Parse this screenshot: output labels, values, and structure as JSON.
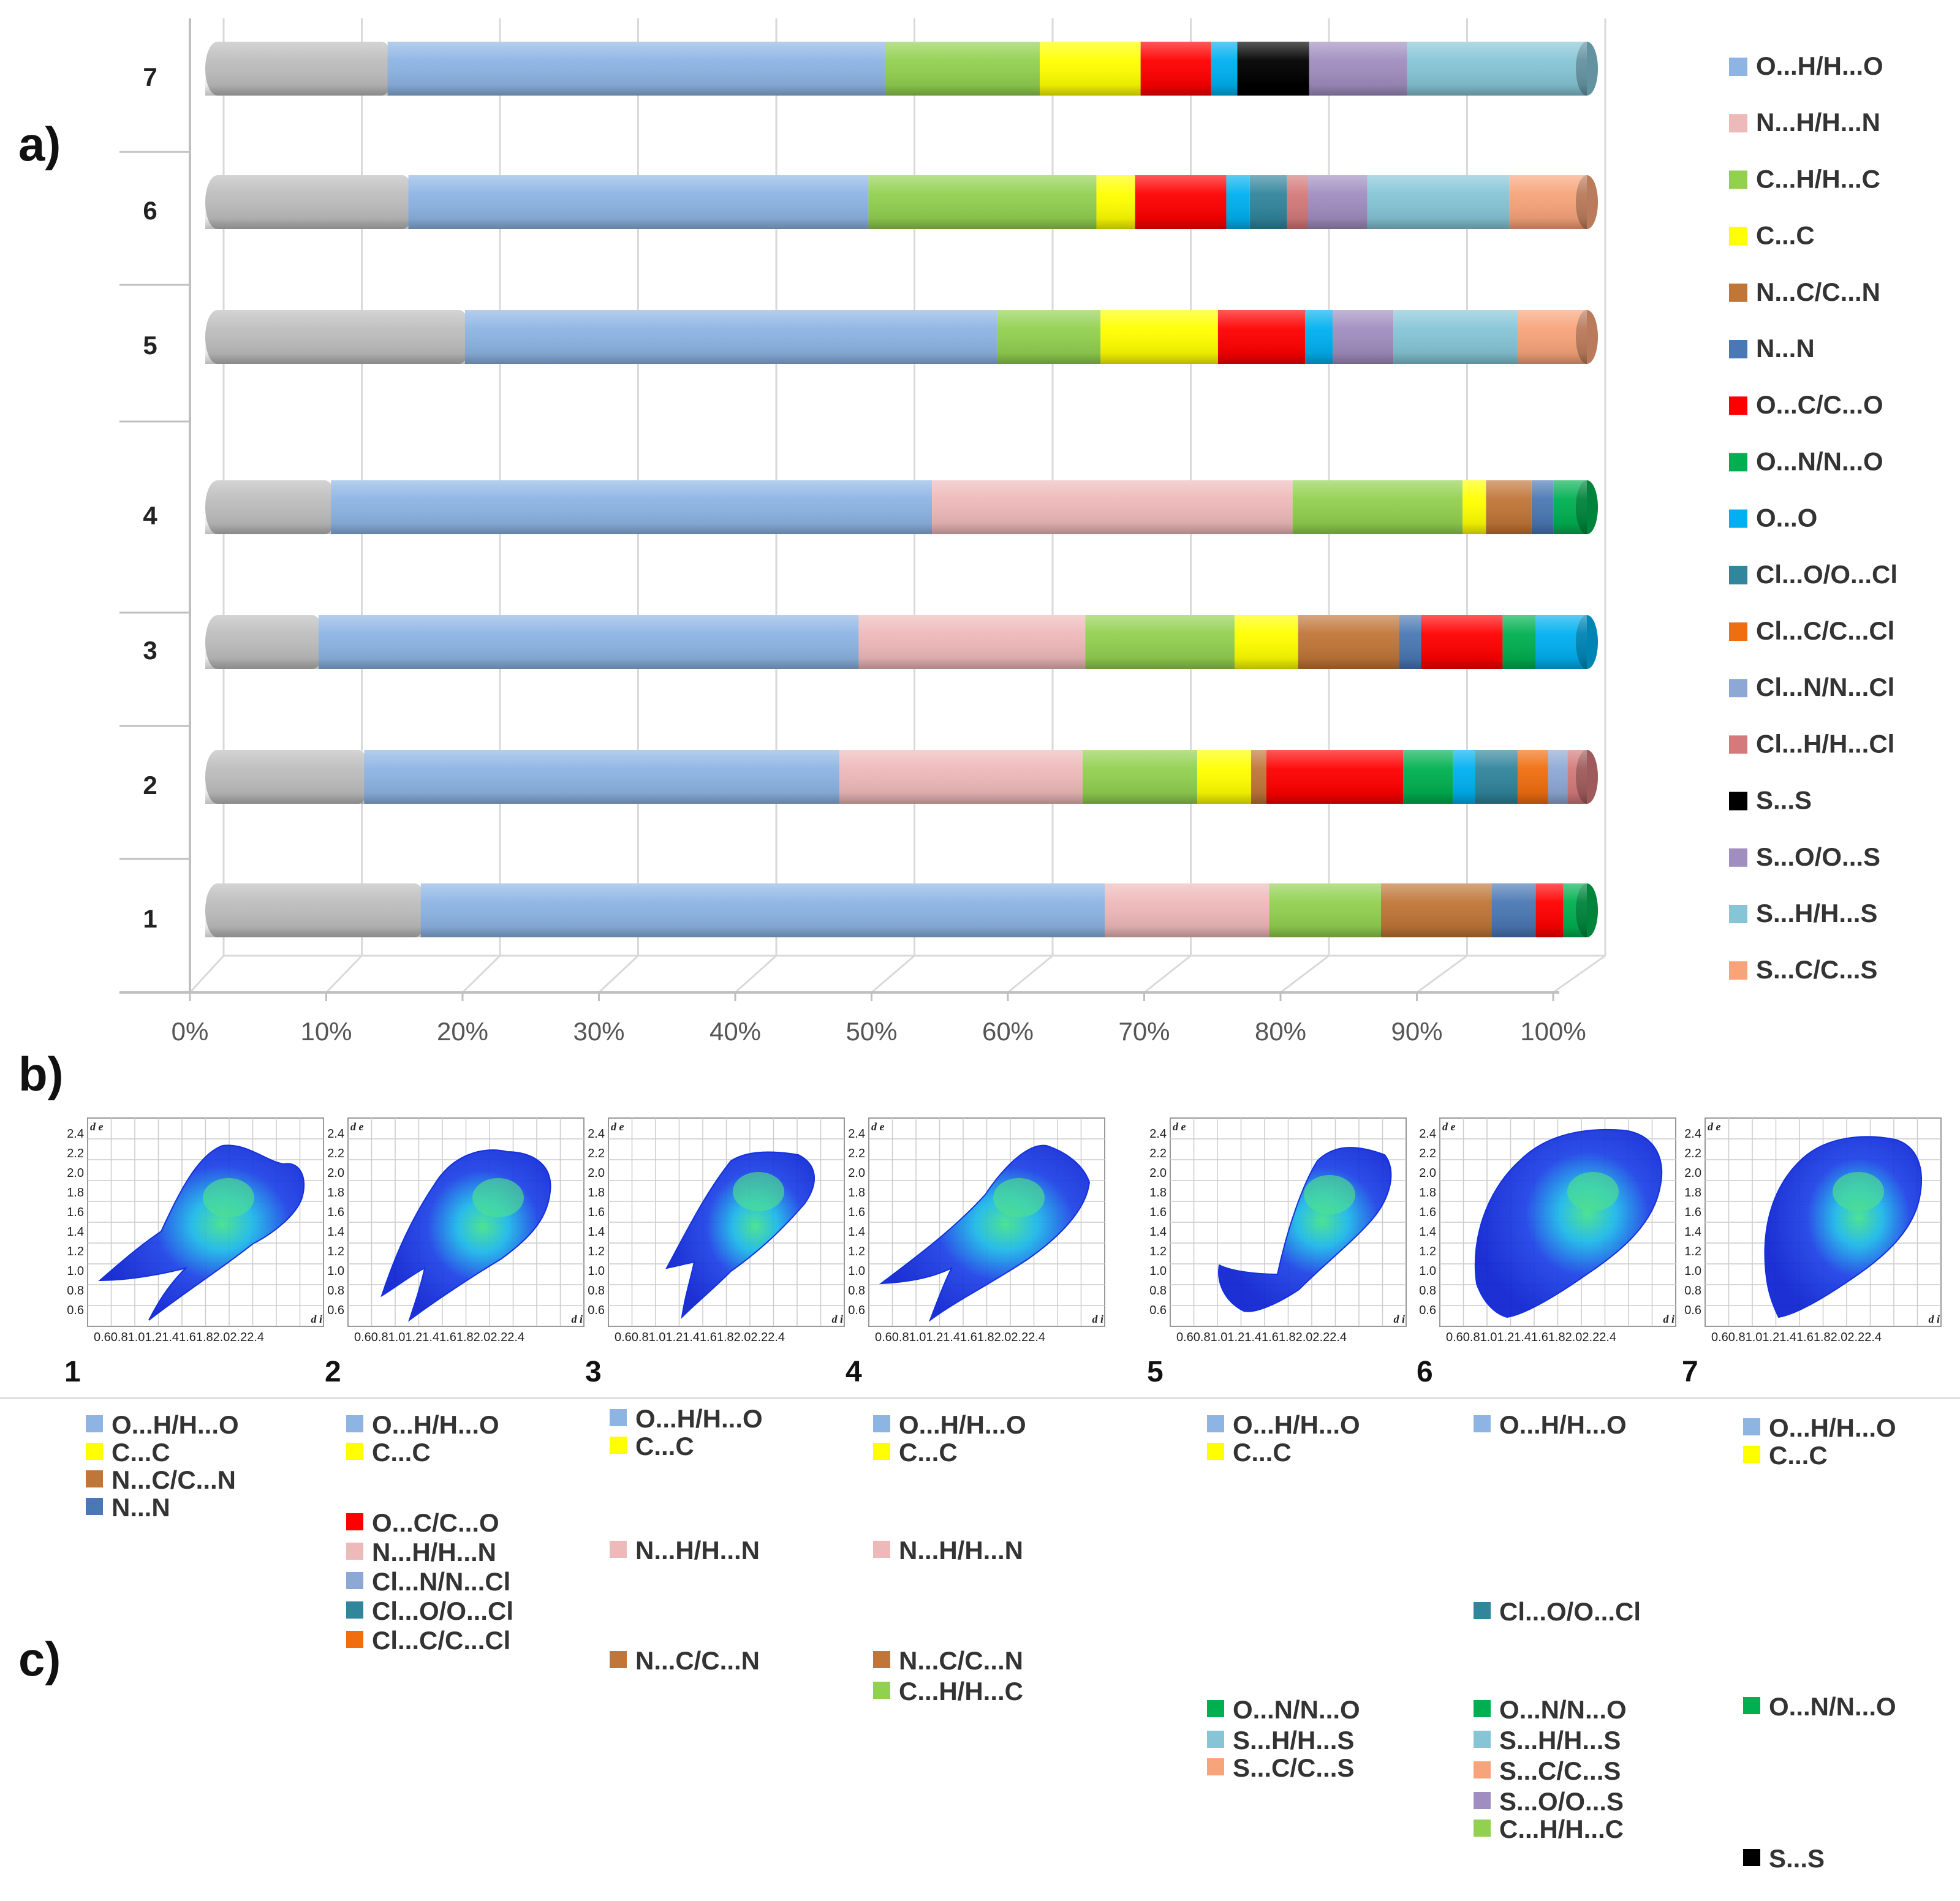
{
  "panels": {
    "a": "a)",
    "b": "b)",
    "c": "c)"
  },
  "colors": {
    "Other": "#bdbdbd",
    "O...H/H...O": "#8db4e3",
    "N...H/H...N": "#eeb9b9",
    "C...H/H...C": "#92d050",
    "C...C": "#ffff00",
    "N...C/C...N": "#c07638",
    "N...N": "#4a78b4",
    "O...C/C...O": "#ff0000",
    "O...N/N...O": "#00b050",
    "O...O": "#00b0f0",
    "Cl...O/O...Cl": "#31859c",
    "Cl...C/C...Cl": "#f06e10",
    "Cl...N/N...Cl": "#8ea8d6",
    "Cl...H/H...Cl": "#d47a7a",
    "S...S": "#000000",
    "S...O/O...S": "#a08ec0",
    "S...H/H...S": "#86c5d6",
    "S...C/C...S": "#f7a47a"
  },
  "chart_data": {
    "type": "bar",
    "orientation": "horizontal",
    "stacked": "percent",
    "categories": [
      "1",
      "2",
      "3",
      "4",
      "5",
      "6",
      "7"
    ],
    "x_ticks": [
      "0%",
      "10%",
      "20%",
      "30%",
      "40%",
      "50%",
      "60%",
      "70%",
      "80%",
      "90%",
      "100%"
    ],
    "xlim": [
      0,
      100
    ],
    "legend_position": "right",
    "legend": [
      "O...H/H...O",
      "N...H/H...N",
      "C...H/H...C",
      "C...C",
      "N...C/C...N",
      "N...N",
      "O...C/C...O",
      "O...N/N...O",
      "O...O",
      "Cl...O/O...Cl",
      "Cl...C/C...Cl",
      "Cl...N/N...Cl",
      "Cl...H/H...Cl",
      "S...S",
      "S...O/O...S",
      "S...H/H...S",
      "S...C/C...S"
    ],
    "stacks": [
      {
        "category": "1",
        "segments": [
          [
            "Other",
            15.6
          ],
          [
            "O...H/H...O",
            49.5
          ],
          [
            "N...H/H...N",
            11.9
          ],
          [
            "C...H/H...C",
            8.1
          ],
          [
            "N...C/C...N",
            8.0
          ],
          [
            "N...N",
            3.2
          ],
          [
            "O...C/C...O",
            2.0
          ],
          [
            "O...N/N...O",
            1.7
          ]
        ]
      },
      {
        "category": "2",
        "segments": [
          [
            "Other",
            11.5
          ],
          [
            "O...H/H...O",
            34.4
          ],
          [
            "N...H/H...N",
            17.6
          ],
          [
            "C...H/H...C",
            8.3
          ],
          [
            "C...C",
            3.9
          ],
          [
            "N...C/C...N",
            1.1
          ],
          [
            "O...C/C...O",
            9.9
          ],
          [
            "O...N/N...O",
            3.6
          ],
          [
            "O...O",
            1.6
          ],
          [
            "Cl...O/O...Cl",
            3.1
          ],
          [
            "Cl...C/C...Cl",
            2.2
          ],
          [
            "Cl...N/N...Cl",
            1.4
          ],
          [
            "Cl...H/H...Cl",
            1.4
          ]
        ]
      },
      {
        "category": "3",
        "segments": [
          [
            "Other",
            8.2
          ],
          [
            "O...H/H...O",
            39.1
          ],
          [
            "N...H/H...N",
            16.4
          ],
          [
            "C...H/H...C",
            10.8
          ],
          [
            "C...C",
            4.6
          ],
          [
            "N...C/C...N",
            7.3
          ],
          [
            "N...N",
            1.6
          ],
          [
            "O...C/C...O",
            5.9
          ],
          [
            "O...N/N...O",
            2.4
          ],
          [
            "O...O",
            3.7
          ]
        ]
      },
      {
        "category": "4",
        "segments": [
          [
            "Other",
            9.1
          ],
          [
            "O...H/H...O",
            43.5
          ],
          [
            "N...H/H...N",
            26.1
          ],
          [
            "C...H/H...C",
            12.3
          ],
          [
            "C...C",
            1.7
          ],
          [
            "N...C/C...N",
            3.3
          ],
          [
            "N...N",
            1.6
          ],
          [
            "O...N/N...O",
            2.4
          ]
        ]
      },
      {
        "category": "5",
        "segments": [
          [
            "Other",
            18.8
          ],
          [
            "O...H/H...O",
            38.5
          ],
          [
            "C...H/H...C",
            7.5
          ],
          [
            "C...C",
            8.5
          ],
          [
            "O...C/C...O",
            6.3
          ],
          [
            "O...O",
            2.0
          ],
          [
            "S...O/O...S",
            4.4
          ],
          [
            "S...H/H...S",
            9.0
          ],
          [
            "S...C/C...S",
            5.0
          ]
        ]
      },
      {
        "category": "6",
        "segments": [
          [
            "Other",
            14.7
          ],
          [
            "O...H/H...O",
            33.3
          ],
          [
            "C...H/H...C",
            16.5
          ],
          [
            "C...C",
            2.8
          ],
          [
            "O...C/C...O",
            6.6
          ],
          [
            "O...O",
            1.7
          ],
          [
            "Cl...O/O...Cl",
            2.7
          ],
          [
            "Cl...H/H...Cl",
            1.5
          ],
          [
            "S...O/O...S",
            4.3
          ],
          [
            "S...H/H...S",
            10.3
          ],
          [
            "S...C/C...S",
            5.6
          ]
        ]
      },
      {
        "category": "7",
        "segments": [
          [
            "Other",
            13.2
          ],
          [
            "O...H/H...O",
            36.0
          ],
          [
            "C...H/H...C",
            11.2
          ],
          [
            "C...C",
            7.3
          ],
          [
            "O...C/C...O",
            5.1
          ],
          [
            "O...O",
            1.9
          ],
          [
            "S...S",
            5.2
          ],
          [
            "S...O/O...S",
            7.1
          ],
          [
            "S...H/H...S",
            13.0
          ]
        ]
      }
    ]
  },
  "fingerprints": {
    "y_axis_label": "d e",
    "x_axis_label": "d i",
    "y_ticks": [
      "2.4",
      "2.2",
      "2.0",
      "1.8",
      "1.6",
      "1.4",
      "1.2",
      "1.0",
      "0.8",
      "0.6"
    ],
    "x_tick_text": "0.60.81.01.21.41.61.82.02.22.4",
    "plots": [
      {
        "label": "1"
      },
      {
        "label": "2"
      },
      {
        "label": "3"
      },
      {
        "label": "4"
      },
      {
        "label": "5"
      },
      {
        "label": "6"
      },
      {
        "label": "7"
      }
    ]
  },
  "panel_c": {
    "columns": [
      {
        "items": [
          [
            "O...H/H...O",
            "O...H/H...O"
          ],
          [
            "C...C",
            "C...C"
          ],
          [
            "N...C/C...N",
            "N...C/C...N"
          ],
          [
            "N...N",
            "N...N"
          ]
        ]
      },
      {
        "items": [
          [
            "O...H/H...O",
            "O...H/H...O"
          ],
          [
            "C...C",
            "C...C"
          ],
          [
            "O...C/C...O",
            "O...C/C...O"
          ],
          [
            "N...H/H...N",
            "N...H/H...N"
          ],
          [
            "Cl...N/N...Cl",
            "Cl...N/N...Cl"
          ],
          [
            "Cl...O/O...Cl",
            "Cl...O/O...Cl"
          ],
          [
            "Cl...C/C...Cl",
            "Cl...C/C...Cl"
          ]
        ]
      },
      {
        "items": [
          [
            "O...H/H...O",
            "O...H/H...O"
          ],
          [
            "C...C",
            "C...C"
          ],
          [
            "N...H/H...N",
            "N...H/H...N"
          ],
          [
            "N...C/C...N",
            "N...C/C...N"
          ]
        ]
      },
      {
        "items": [
          [
            "O...H/H...O",
            "O...H/H...O"
          ],
          [
            "C...C",
            "C...C"
          ],
          [
            "N...H/H...N",
            "N...H/H...N"
          ],
          [
            "N...C/C...N",
            "N...C/C...N"
          ],
          [
            "C...H/H...C",
            "C...H/H...C"
          ]
        ]
      },
      {
        "items": [
          [
            "O...H/H...O",
            "O...H/H...O"
          ],
          [
            "C...C",
            "C...C"
          ],
          [
            "O...N/N...O",
            "O...N/N...O"
          ],
          [
            "S...H/H...S",
            "S...H/H...S"
          ],
          [
            "S...C/C...S",
            "S...C/C...S"
          ]
        ]
      },
      {
        "items": [
          [
            "O...H/H...O",
            "O...H/H...O"
          ],
          [
            "Cl...O/O...Cl",
            "Cl...O/O...Cl"
          ],
          [
            "O...N/N...O",
            "O...N/N...O"
          ],
          [
            "S...H/H...S",
            "S...H/H...S"
          ],
          [
            "S...C/C...S",
            "S...C/C...S"
          ],
          [
            "S...O/O...S",
            "S...O/O...S"
          ],
          [
            "C...H/H...C",
            "C...H/H...C"
          ]
        ]
      },
      {
        "items": [
          [
            "O...H/H...O",
            "O...H/H...O"
          ],
          [
            "C...C",
            "C...C"
          ],
          [
            "O...N/N...O",
            "O...N/N...O"
          ],
          [
            "S...S",
            "S...S"
          ]
        ]
      }
    ]
  }
}
